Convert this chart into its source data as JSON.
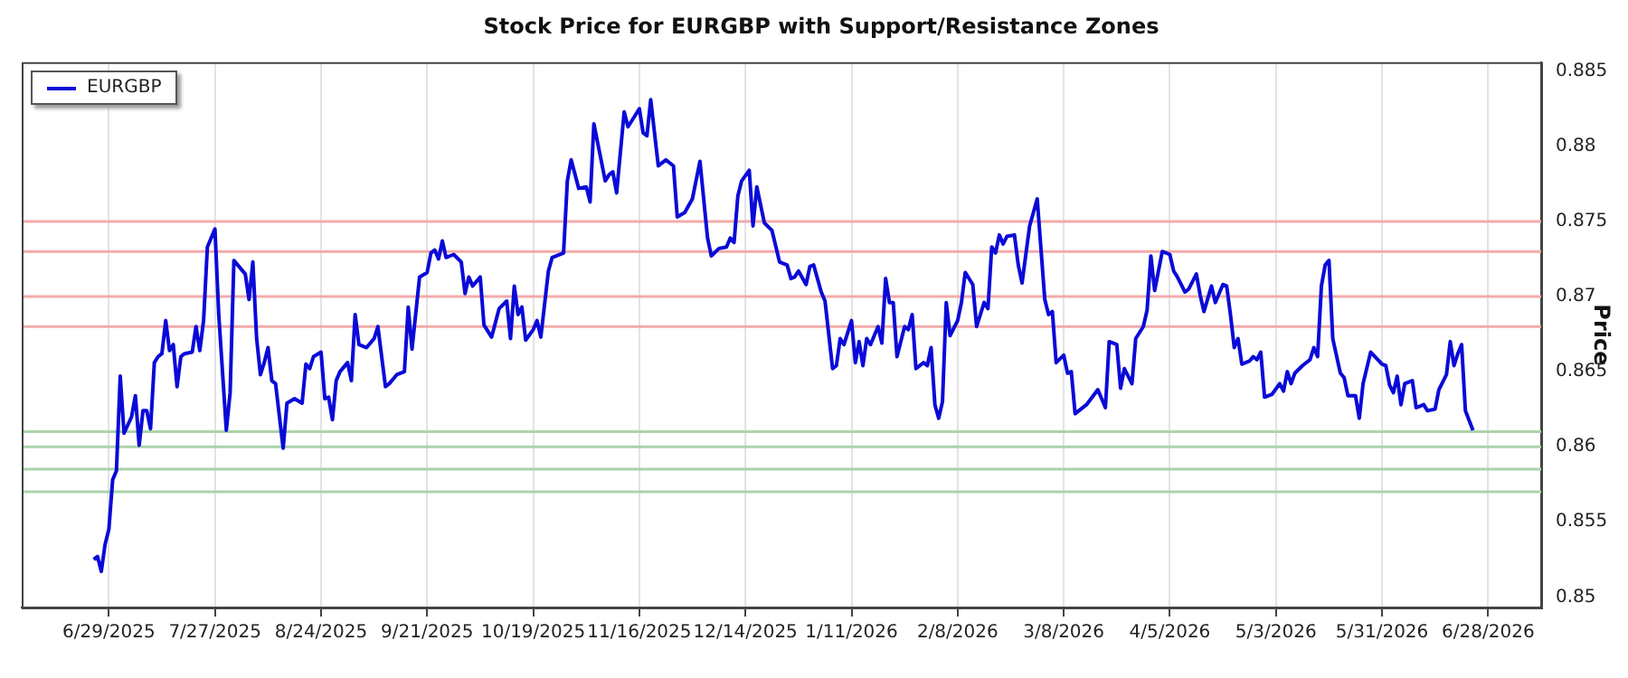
{
  "chart_data": {
    "type": "line",
    "title": "Stock Price for EURGBP with Support/Resistance Zones",
    "ylabel": "Price",
    "legend": "top left",
    "grid": "x",
    "marker": "none",
    "line_style": "solid",
    "xlim": [
      "2025-06-06",
      "2026-07-12"
    ],
    "xticks": [
      {
        "value": "2025-06-29",
        "label": "6/29/2025"
      },
      {
        "value": "2025-07-27",
        "label": "7/27/2025"
      },
      {
        "value": "2025-08-24",
        "label": "8/24/2025"
      },
      {
        "value": "2025-09-21",
        "label": "9/21/2025"
      },
      {
        "value": "2025-10-19",
        "label": "10/19/2025"
      },
      {
        "value": "2025-11-16",
        "label": "11/16/2025"
      },
      {
        "value": "2025-12-14",
        "label": "12/14/2025"
      },
      {
        "value": "2026-01-11",
        "label": "1/11/2026"
      },
      {
        "value": "2026-02-08",
        "label": "2/8/2026"
      },
      {
        "value": "2026-03-08",
        "label": "3/8/2026"
      },
      {
        "value": "2026-04-05",
        "label": "4/5/2026"
      },
      {
        "value": "2026-05-03",
        "label": "5/3/2026"
      },
      {
        "value": "2026-05-31",
        "label": "5/31/2026"
      },
      {
        "value": "2026-06-28",
        "label": "6/28/2026"
      }
    ],
    "ylim": [
      0.8493,
      0.8856
    ],
    "yticks": [
      0.85,
      0.855,
      0.86,
      0.865,
      0.87,
      0.875,
      0.88,
      0.885
    ],
    "ref_lines": [
      {
        "axis": "y",
        "value": 0.875,
        "color": "#f2aaaa"
      },
      {
        "axis": "y",
        "value": 0.873,
        "color": "#f2aaaa"
      },
      {
        "axis": "y",
        "value": 0.87,
        "color": "#f2aaaa"
      },
      {
        "axis": "y",
        "value": 0.868,
        "color": "#f2aaaa"
      },
      {
        "axis": "y",
        "value": 0.861,
        "color": "#a9d4a9"
      },
      {
        "axis": "y",
        "value": 0.86,
        "color": "#a9d4a9"
      },
      {
        "axis": "y",
        "value": 0.8585,
        "color": "#a9d4a9"
      },
      {
        "axis": "y",
        "value": 0.857,
        "color": "#a9d4a9"
      }
    ],
    "series": [
      {
        "name": "EURGBP",
        "color": "#0a0ad8",
        "x": [
          "2025-06-25",
          "2025-06-26",
          "2025-06-27",
          "2025-06-28",
          "2025-06-29",
          "2025-06-30",
          "2025-07-01",
          "2025-07-02",
          "2025-07-03",
          "2025-07-05",
          "2025-07-06",
          "2025-07-07",
          "2025-07-08",
          "2025-07-09",
          "2025-07-10",
          "2025-07-11",
          "2025-07-12",
          "2025-07-13",
          "2025-07-14",
          "2025-07-15",
          "2025-07-16",
          "2025-07-17",
          "2025-07-18",
          "2025-07-19",
          "2025-07-21",
          "2025-07-22",
          "2025-07-23",
          "2025-07-24",
          "2025-07-25",
          "2025-07-27",
          "2025-07-28",
          "2025-07-30",
          "2025-07-31",
          "2025-08-01",
          "2025-08-04",
          "2025-08-05",
          "2025-08-06",
          "2025-08-07",
          "2025-08-08",
          "2025-08-09",
          "2025-08-10",
          "2025-08-11",
          "2025-08-12",
          "2025-08-14",
          "2025-08-15",
          "2025-08-17",
          "2025-08-19",
          "2025-08-20",
          "2025-08-21",
          "2025-08-22",
          "2025-08-24",
          "2025-08-25",
          "2025-08-26",
          "2025-08-27",
          "2025-08-28",
          "2025-08-29",
          "2025-08-31",
          "2025-09-01",
          "2025-09-02",
          "2025-09-03",
          "2025-09-05",
          "2025-09-07",
          "2025-09-08",
          "2025-09-10",
          "2025-09-11",
          "2025-09-13",
          "2025-09-15",
          "2025-09-16",
          "2025-09-17",
          "2025-09-19",
          "2025-09-21",
          "2025-09-22",
          "2025-09-23",
          "2025-09-24",
          "2025-09-25",
          "2025-09-26",
          "2025-09-28",
          "2025-09-30",
          "2025-10-01",
          "2025-10-02",
          "2025-10-03",
          "2025-10-05",
          "2025-10-06",
          "2025-10-08",
          "2025-10-10",
          "2025-10-12",
          "2025-10-13",
          "2025-10-14",
          "2025-10-15",
          "2025-10-16",
          "2025-10-17",
          "2025-10-19",
          "2025-10-20",
          "2025-10-21",
          "2025-10-23",
          "2025-10-24",
          "2025-10-27",
          "2025-10-28",
          "2025-10-29",
          "2025-10-31",
          "2025-11-02",
          "2025-11-03",
          "2025-11-04",
          "2025-11-07",
          "2025-11-08",
          "2025-11-09",
          "2025-11-10",
          "2025-11-12",
          "2025-11-13",
          "2025-11-15",
          "2025-11-16",
          "2025-11-17",
          "2025-11-18",
          "2025-11-19",
          "2025-11-21",
          "2025-11-23",
          "2025-11-25",
          "2025-11-26",
          "2025-11-28",
          "2025-11-30",
          "2025-12-02",
          "2025-12-04",
          "2025-12-05",
          "2025-12-07",
          "2025-12-09",
          "2025-12-10",
          "2025-12-11",
          "2025-12-12",
          "2025-12-13",
          "2025-12-15",
          "2025-12-16",
          "2025-12-17",
          "2025-12-19",
          "2025-12-21",
          "2025-12-23",
          "2025-12-25",
          "2025-12-26",
          "2025-12-27",
          "2025-12-28",
          "2025-12-30",
          "2025-12-31",
          "2026-01-01",
          "2026-01-03",
          "2026-01-04",
          "2026-01-06",
          "2026-01-07",
          "2026-01-08",
          "2026-01-09",
          "2026-01-10",
          "2026-01-11",
          "2026-01-12",
          "2026-01-13",
          "2026-01-14",
          "2026-01-15",
          "2026-01-16",
          "2026-01-17",
          "2026-01-18",
          "2026-01-19",
          "2026-01-20",
          "2026-01-21",
          "2026-01-22",
          "2026-01-23",
          "2026-01-25",
          "2026-01-26",
          "2026-01-27",
          "2026-01-28",
          "2026-01-30",
          "2026-01-31",
          "2026-02-01",
          "2026-02-02",
          "2026-02-03",
          "2026-02-04",
          "2026-02-05",
          "2026-02-06",
          "2026-02-08",
          "2026-02-09",
          "2026-02-10",
          "2026-02-12",
          "2026-02-13",
          "2026-02-15",
          "2026-02-16",
          "2026-02-17",
          "2026-02-18",
          "2026-02-19",
          "2026-02-20",
          "2026-02-21",
          "2026-02-23",
          "2026-02-24",
          "2026-02-25",
          "2026-02-27",
          "2026-03-01",
          "2026-03-03",
          "2026-03-04",
          "2026-03-05",
          "2026-03-06",
          "2026-03-08",
          "2026-03-09",
          "2026-03-10",
          "2026-03-11",
          "2026-03-14",
          "2026-03-17",
          "2026-03-19",
          "2026-03-20",
          "2026-03-22",
          "2026-03-23",
          "2026-03-24",
          "2026-03-26",
          "2026-03-27",
          "2026-03-29",
          "2026-03-30",
          "2026-03-31",
          "2026-04-01",
          "2026-04-03",
          "2026-04-05",
          "2026-04-06",
          "2026-04-07",
          "2026-04-09",
          "2026-04-10",
          "2026-04-12",
          "2026-04-13",
          "2026-04-14",
          "2026-04-16",
          "2026-04-17",
          "2026-04-18",
          "2026-04-19",
          "2026-04-20",
          "2026-04-21",
          "2026-04-22",
          "2026-04-23",
          "2026-04-24",
          "2026-04-26",
          "2026-04-27",
          "2026-04-28",
          "2026-04-29",
          "2026-04-30",
          "2026-05-02",
          "2026-05-04",
          "2026-05-05",
          "2026-05-06",
          "2026-05-07",
          "2026-05-08",
          "2026-05-10",
          "2026-05-12",
          "2026-05-13",
          "2026-05-14",
          "2026-05-15",
          "2026-05-16",
          "2026-05-17",
          "2026-05-18",
          "2026-05-20",
          "2026-05-21",
          "2026-05-22",
          "2026-05-24",
          "2026-05-25",
          "2026-05-26",
          "2026-05-28",
          "2026-05-31",
          "2026-06-01",
          "2026-06-02",
          "2026-06-03",
          "2026-06-04",
          "2026-06-05",
          "2026-06-06",
          "2026-06-08",
          "2026-06-09",
          "2026-06-10",
          "2026-06-11",
          "2026-06-12",
          "2026-06-14",
          "2026-06-15",
          "2026-06-17",
          "2026-06-18",
          "2026-06-19",
          "2026-06-20",
          "2026-06-21",
          "2026-06-22",
          "2026-06-24"
        ],
        "values": [
          0.8525,
          0.8527,
          0.8517,
          0.8535,
          0.8545,
          0.8578,
          0.8584,
          0.8647,
          0.8609,
          0.862,
          0.8634,
          0.8601,
          0.8624,
          0.8624,
          0.8612,
          0.8656,
          0.866,
          0.8662,
          0.8684,
          0.8664,
          0.8668,
          0.864,
          0.866,
          0.8662,
          0.8663,
          0.868,
          0.8664,
          0.8684,
          0.8733,
          0.8745,
          0.8688,
          0.8611,
          0.8636,
          0.8724,
          0.8715,
          0.8698,
          0.8723,
          0.8672,
          0.8648,
          0.8656,
          0.8666,
          0.8644,
          0.8642,
          0.8599,
          0.8629,
          0.8632,
          0.8629,
          0.8655,
          0.8652,
          0.866,
          0.8663,
          0.8632,
          0.8633,
          0.8618,
          0.8644,
          0.865,
          0.8656,
          0.8644,
          0.8688,
          0.8668,
          0.8666,
          0.8672,
          0.868,
          0.864,
          0.8642,
          0.8648,
          0.865,
          0.8693,
          0.8665,
          0.8713,
          0.8716,
          0.8729,
          0.8731,
          0.8725,
          0.8737,
          0.8726,
          0.8728,
          0.8723,
          0.8702,
          0.8713,
          0.8707,
          0.8713,
          0.8681,
          0.8673,
          0.8692,
          0.8697,
          0.8672,
          0.8707,
          0.8688,
          0.8693,
          0.8671,
          0.8678,
          0.8684,
          0.8673,
          0.8717,
          0.8726,
          0.8729,
          0.8777,
          0.8791,
          0.8772,
          0.8773,
          0.8763,
          0.8815,
          0.8777,
          0.8781,
          0.8783,
          0.8769,
          0.8823,
          0.8813,
          0.8821,
          0.8825,
          0.8809,
          0.8807,
          0.8831,
          0.8787,
          0.8791,
          0.8787,
          0.8753,
          0.8756,
          0.8765,
          0.879,
          0.8739,
          0.8727,
          0.8732,
          0.8733,
          0.8739,
          0.8736,
          0.8767,
          0.8777,
          0.8784,
          0.8747,
          0.8773,
          0.8749,
          0.8744,
          0.8723,
          0.8721,
          0.8712,
          0.8713,
          0.8717,
          0.8708,
          0.872,
          0.8721,
          0.8703,
          0.8697,
          0.8652,
          0.8654,
          0.8672,
          0.8668,
          0.8676,
          0.8684,
          0.8656,
          0.867,
          0.8654,
          0.8672,
          0.8668,
          0.8674,
          0.868,
          0.8669,
          0.8712,
          0.8696,
          0.8696,
          0.866,
          0.868,
          0.8678,
          0.8688,
          0.8652,
          0.8656,
          0.8654,
          0.8666,
          0.8628,
          0.8619,
          0.863,
          0.8696,
          0.8674,
          0.8684,
          0.8696,
          0.8716,
          0.8708,
          0.868,
          0.8696,
          0.8692,
          0.8733,
          0.8729,
          0.8741,
          0.8735,
          0.874,
          0.8741,
          0.8721,
          0.8709,
          0.8747,
          0.8765,
          0.8698,
          0.8688,
          0.869,
          0.8656,
          0.8661,
          0.8649,
          0.865,
          0.8622,
          0.8628,
          0.8638,
          0.8626,
          0.867,
          0.8668,
          0.8639,
          0.8652,
          0.8642,
          0.8672,
          0.868,
          0.8691,
          0.8727,
          0.8704,
          0.873,
          0.8728,
          0.8717,
          0.8713,
          0.8703,
          0.8705,
          0.8715,
          0.8701,
          0.869,
          0.8707,
          0.8696,
          0.8702,
          0.8708,
          0.8707,
          0.8688,
          0.8666,
          0.8672,
          0.8655,
          0.8657,
          0.866,
          0.8658,
          0.8663,
          0.8633,
          0.8635,
          0.8642,
          0.8637,
          0.865,
          0.8642,
          0.8649,
          0.8654,
          0.8658,
          0.8666,
          0.866,
          0.8707,
          0.8721,
          0.8724,
          0.8672,
          0.8649,
          0.8646,
          0.8634,
          0.8634,
          0.8619,
          0.8642,
          0.8663,
          0.8655,
          0.8654,
          0.8641,
          0.8636,
          0.8647,
          0.8628,
          0.8642,
          0.8644,
          0.8626,
          0.8627,
          0.8628,
          0.8624,
          0.8625,
          0.8638,
          0.8648,
          0.867,
          0.8654,
          0.8662,
          0.8668,
          0.8624,
          0.8611
        ]
      }
    ]
  }
}
